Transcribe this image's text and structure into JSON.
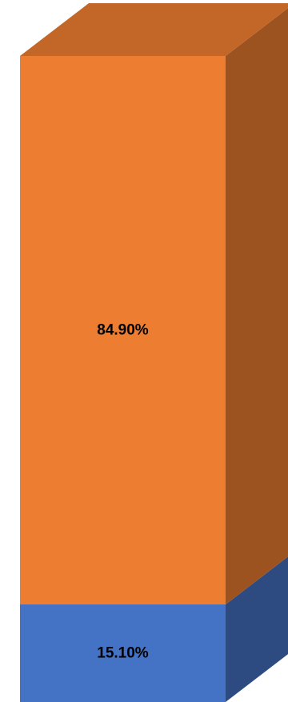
{
  "chart_data": {
    "type": "bar",
    "variant": "3d-stacked-100-percent",
    "title": "",
    "xlabel": "",
    "ylabel": "",
    "ylim": [
      0,
      100
    ],
    "grid": false,
    "legend": "none",
    "series": [
      {
        "value": 15.1,
        "label": "15.10%",
        "color": "#4472C4"
      },
      {
        "value": 84.9,
        "label": "84.90%",
        "color": "#ED7D31"
      }
    ]
  }
}
